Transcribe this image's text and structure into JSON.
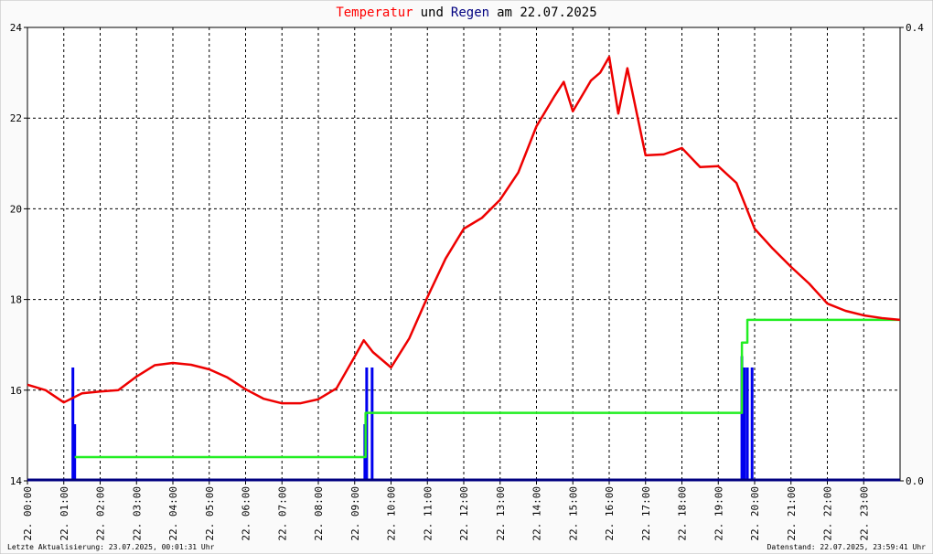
{
  "chart_data": {
    "type": "line",
    "title_parts": [
      {
        "text": "Temperatur",
        "color": "#ff0000"
      },
      {
        "text": "und",
        "color": "#000000"
      },
      {
        "text": "Regen",
        "color": "#000080"
      },
      {
        "text": "am 22.07.2025",
        "color": "#000000"
      }
    ],
    "xlim": [
      0,
      24
    ],
    "xticks": [
      {
        "value": 0,
        "label": "22. 00:00"
      },
      {
        "value": 1,
        "label": "22. 01:00"
      },
      {
        "value": 2,
        "label": "22. 02:00"
      },
      {
        "value": 3,
        "label": "22. 03:00"
      },
      {
        "value": 4,
        "label": "22. 04:00"
      },
      {
        "value": 5,
        "label": "22. 05:00"
      },
      {
        "value": 6,
        "label": "22. 06:00"
      },
      {
        "value": 7,
        "label": "22. 07:00"
      },
      {
        "value": 8,
        "label": "22. 08:00"
      },
      {
        "value": 9,
        "label": "22. 09:00"
      },
      {
        "value": 10,
        "label": "22. 10:00"
      },
      {
        "value": 11,
        "label": "22. 11:00"
      },
      {
        "value": 12,
        "label": "22. 12:00"
      },
      {
        "value": 13,
        "label": "22. 13:00"
      },
      {
        "value": 14,
        "label": "22. 14:00"
      },
      {
        "value": 15,
        "label": "22. 15:00"
      },
      {
        "value": 16,
        "label": "22. 16:00"
      },
      {
        "value": 17,
        "label": "22. 17:00"
      },
      {
        "value": 18,
        "label": "22. 18:00"
      },
      {
        "value": 19,
        "label": "22. 19:00"
      },
      {
        "value": 20,
        "label": "22. 20:00"
      },
      {
        "value": 21,
        "label": "22. 21:00"
      },
      {
        "value": 22,
        "label": "22. 22:00"
      },
      {
        "value": 23,
        "label": "22. 23:00"
      }
    ],
    "ylim": [
      14,
      24
    ],
    "yticks": [
      14,
      16,
      18,
      20,
      22,
      24
    ],
    "y2lim": [
      0,
      0.4
    ],
    "y2ticks": [
      {
        "value": 0,
        "label": "0.0"
      },
      {
        "value": 0.4,
        "label": "0.4"
      }
    ],
    "grid": true,
    "series": [
      {
        "type": "line",
        "color": "#ee0000",
        "x": [
          0,
          0.5,
          1,
          1.5,
          2,
          2.5,
          3,
          3.5,
          4,
          4.5,
          5,
          5.5,
          6,
          6.5,
          7,
          7.5,
          8,
          8.5,
          9,
          9.25,
          9.5,
          10,
          10.5,
          11,
          11.5,
          12,
          12.5,
          13,
          13.5,
          14,
          14.5,
          14.75,
          15,
          15.5,
          15.75,
          16,
          16.25,
          16.5,
          17,
          17.5,
          18,
          18.5,
          19,
          19.5,
          20,
          20.5,
          21,
          21.5,
          22,
          22.5,
          23,
          23.5,
          24
        ],
        "values": [
          16.12,
          16.0,
          15.73,
          15.93,
          15.97,
          16.0,
          16.3,
          16.55,
          16.6,
          16.56,
          16.46,
          16.28,
          16.02,
          15.81,
          15.71,
          15.71,
          15.8,
          16.04,
          16.74,
          17.1,
          16.84,
          16.5,
          17.14,
          18.05,
          18.9,
          19.56,
          19.8,
          20.2,
          20.8,
          21.82,
          22.49,
          22.8,
          22.15,
          22.83,
          23.0,
          23.35,
          22.1,
          23.1,
          21.18,
          21.2,
          21.34,
          20.92,
          20.94,
          20.57,
          19.56,
          19.12,
          18.72,
          18.35,
          17.91,
          17.75,
          17.65,
          17.59,
          17.55
        ]
      },
      {
        "type": "bar",
        "axis": "y2",
        "color": "#0000ee",
        "x": [
          1.25,
          1.3,
          9.28,
          9.33,
          9.48,
          19.65,
          19.72,
          19.8,
          19.93
        ],
        "values": [
          0.1,
          0.05,
          0.05,
          0.1,
          0.1,
          0.11,
          0.1,
          0.1,
          0.1
        ]
      },
      {
        "type": "line",
        "step": true,
        "axis": "y2",
        "color": "#22ee22",
        "x": [
          1.3,
          9.3,
          19.65,
          19.8,
          24
        ],
        "values": [
          0.021,
          0.06,
          0.122,
          0.142,
          0.142
        ]
      }
    ],
    "footer_left": "Letzte Aktualisierung: 23.07.2025, 00:01:31 Uhr",
    "footer_right": "Datenstand: 22.07.2025, 23:59:41 Uhr"
  }
}
